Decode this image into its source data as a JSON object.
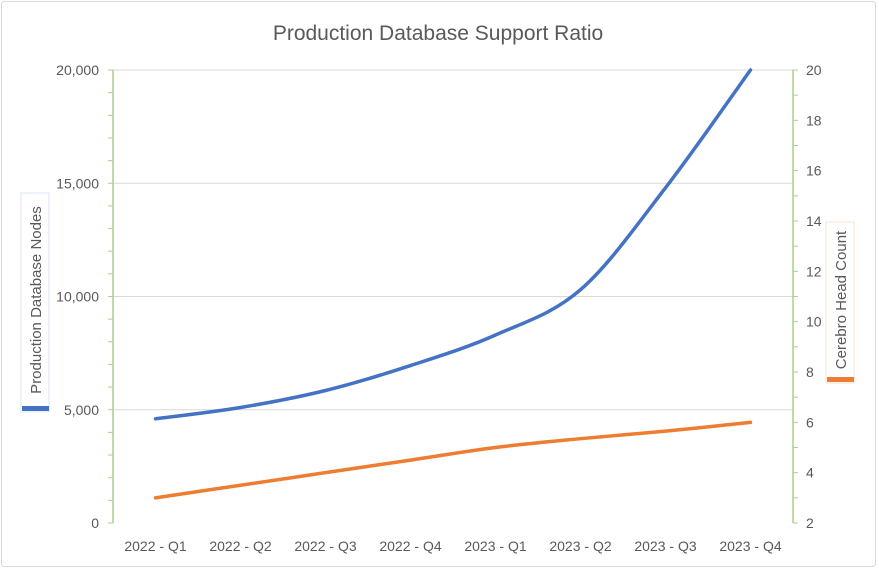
{
  "chart_data": {
    "type": "line",
    "title": "Production Database Support Ratio",
    "categories": [
      "2022 - Q1",
      "2022 - Q2",
      "2022 - Q3",
      "2022 - Q4",
      "2023 - Q1",
      "2023 - Q2",
      "2023 - Q3",
      "2023 - Q4"
    ],
    "y_left": {
      "label": "Production Database Nodes",
      "range": [
        0,
        20000
      ],
      "major_step": 5000,
      "ticks": [
        "0",
        "5,000",
        "10,000",
        "15,000",
        "20,000"
      ]
    },
    "y_right": {
      "label": "Cerebro Head Count",
      "range": [
        2,
        20
      ],
      "major_step": 2,
      "ticks": [
        "2",
        "4",
        "6",
        "8",
        "10",
        "12",
        "14",
        "16",
        "18",
        "20"
      ]
    },
    "series": [
      {
        "name": "Production Database Nodes",
        "axis": "left",
        "color": "#4472C4",
        "values": [
          4600,
          5100,
          5850,
          6950,
          8300,
          10300,
          14800,
          20000
        ]
      },
      {
        "name": "Cerebro Head Count",
        "axis": "right",
        "color": "#ED7D31",
        "values": [
          3,
          3.5,
          4,
          4.5,
          5,
          5.35,
          5.65,
          6
        ]
      }
    ],
    "grid": true,
    "axis_line_color": "#A9D18E",
    "gridline_color": "#D9D9D9",
    "legend": "none"
  }
}
